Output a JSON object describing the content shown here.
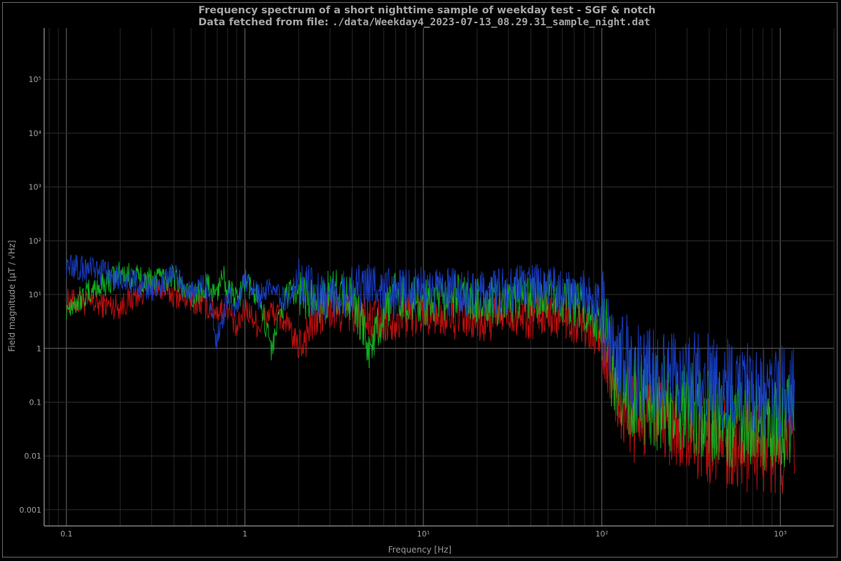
{
  "title_line1": "Frequency spectrum of a short nighttime sample of weekday test - SGF & notch",
  "title_line2_label": "Data fetched from file: ",
  "title_line2_file": "./data/Weekday4_2023-07-13_08.29.31_sample_night.dat",
  "chart_data": {
    "type": "line",
    "xlabel": "Frequency [Hz]",
    "ylabel": "Field magnitude [µT / √Hz]",
    "xscale": "log",
    "yscale": "log",
    "xlim": [
      0.075,
      2000
    ],
    "ylim": [
      0.0005,
      900000
    ],
    "grid": true,
    "x_ticks": [
      {
        "v": 0.1,
        "t": "0.1"
      },
      {
        "v": 1,
        "t": "1"
      },
      {
        "v": 10,
        "t": "10¹"
      },
      {
        "v": 100,
        "t": "10²"
      },
      {
        "v": 1000,
        "t": "10³"
      }
    ],
    "y_ticks": [
      {
        "v": 0.001,
        "t": "0.001"
      },
      {
        "v": 0.01,
        "t": "0.01"
      },
      {
        "v": 0.1,
        "t": "0.1"
      },
      {
        "v": 1,
        "t": "1"
      },
      {
        "v": 10,
        "t": "10¹"
      },
      {
        "v": 100,
        "t": "10²"
      },
      {
        "v": 1000,
        "t": "10³"
      },
      {
        "v": 10000,
        "t": "10⁴"
      },
      {
        "v": 100000,
        "t": "10⁵"
      }
    ],
    "series": [
      {
        "color": "#cc1111",
        "x": [
          0.1,
          0.2,
          0.3,
          0.4,
          0.5,
          0.6,
          0.7,
          0.8,
          0.9,
          1.0,
          1.2,
          1.4,
          1.7,
          2.0,
          2.5,
          3.0,
          4,
          5,
          7,
          10,
          15,
          20,
          30,
          40,
          50,
          60,
          80,
          100,
          120,
          150,
          200,
          300,
          500,
          700,
          1000,
          1200
        ],
        "y": [
          7.5,
          6,
          15,
          10,
          8,
          6,
          5,
          6,
          2,
          6,
          2.5,
          5,
          3,
          1,
          4,
          5,
          5,
          3,
          4,
          5,
          4,
          3,
          5,
          4,
          5,
          4,
          3,
          1.5,
          0.15,
          0.05,
          0.05,
          0.03,
          0.02,
          0.015,
          0.015,
          0.015
        ]
      },
      {
        "color": "#11bb22",
        "x": [
          0.1,
          0.2,
          0.3,
          0.4,
          0.5,
          0.6,
          0.7,
          0.75,
          0.8,
          0.9,
          1.0,
          1.2,
          1.4,
          1.7,
          2.0,
          2.5,
          3.0,
          4,
          5,
          7,
          10,
          15,
          20,
          30,
          40,
          50,
          60,
          80,
          100,
          120,
          150,
          200,
          300,
          500,
          700,
          1000,
          1200
        ],
        "y": [
          6,
          24,
          18,
          22,
          8,
          15,
          10,
          30,
          12,
          8,
          15,
          10,
          1,
          10,
          12,
          6,
          12,
          8,
          1,
          10,
          7,
          9,
          8,
          7,
          9,
          10,
          8,
          6,
          3,
          0.3,
          0.15,
          0.1,
          0.08,
          0.05,
          0.04,
          0.04,
          0.04
        ]
      },
      {
        "color": "#1a3fcc",
        "x": [
          0.1,
          0.2,
          0.3,
          0.4,
          0.5,
          0.6,
          0.7,
          0.8,
          0.9,
          1.0,
          1.2,
          1.4,
          1.7,
          2.0,
          2.5,
          3.0,
          4,
          5,
          7,
          10,
          15,
          20,
          30,
          40,
          50,
          60,
          80,
          100,
          120,
          150,
          200,
          300,
          500,
          700,
          1000,
          1200
        ],
        "y": [
          35,
          22,
          12,
          25,
          10,
          16,
          1.3,
          10,
          6,
          18,
          9,
          12,
          8,
          20,
          10,
          9,
          12,
          15,
          10,
          12,
          11,
          10,
          12,
          13,
          15,
          12,
          10,
          5,
          1,
          0.4,
          0.3,
          0.3,
          0.2,
          0.15,
          0.15,
          0.15
        ]
      }
    ]
  }
}
